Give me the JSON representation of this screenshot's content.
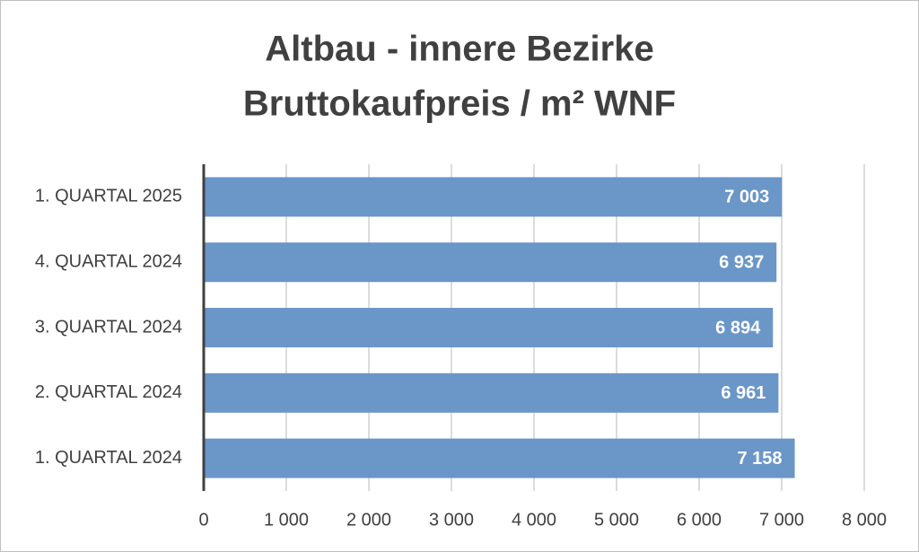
{
  "chart_data": {
    "type": "bar",
    "orientation": "horizontal",
    "title": [
      "Altbau - innere Bezirke",
      "Bruttokaufpreis / m² WNF"
    ],
    "categories": [
      "1. QUARTAL 2025",
      "4. QUARTAL 2024",
      "3. QUARTAL 2024",
      "2. QUARTAL 2024",
      "1. QUARTAL 2024"
    ],
    "values": [
      7003,
      6937,
      6894,
      6961,
      7158
    ],
    "value_labels": [
      "7 003",
      "6 937",
      "6 894",
      "6 961",
      "7 158"
    ],
    "color": "#6a96c8",
    "xlim": [
      0,
      8000
    ],
    "xticks": [
      0,
      {
        "value": 1000,
        "label": "1 000"
      },
      {
        "value": 2000,
        "label": "2 000"
      },
      {
        "value": 3000,
        "label": "3 000"
      },
      {
        "value": 4000,
        "label": "4 000"
      },
      {
        "value": 5000,
        "label": "5 000"
      },
      {
        "value": 6000,
        "label": "6 000"
      },
      {
        "value": 7000,
        "label": "7 000"
      },
      {
        "value": 8000,
        "label": "8 000"
      }
    ],
    "grid": true
  }
}
